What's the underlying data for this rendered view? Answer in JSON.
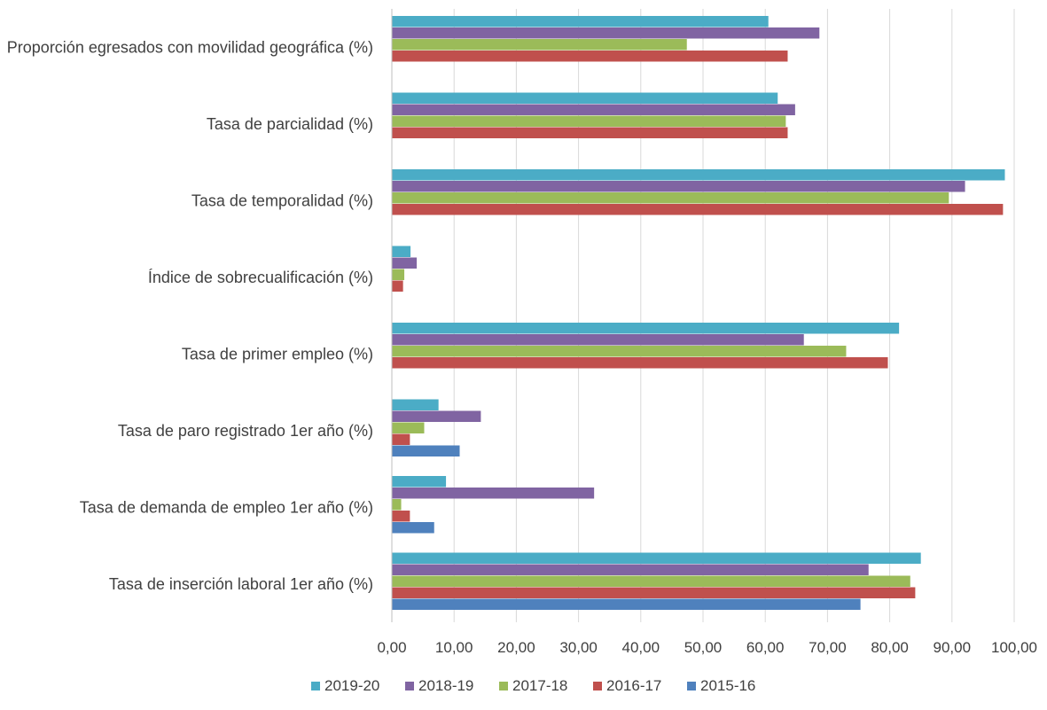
{
  "chart_data": {
    "type": "bar",
    "orientation": "horizontal",
    "title": "",
    "xlabel": "",
    "ylabel": "",
    "xlim": [
      0,
      100
    ],
    "x_tick_values": [
      0,
      10,
      20,
      30,
      40,
      50,
      60,
      70,
      80,
      90,
      100
    ],
    "x_tick_labels": [
      "0,00",
      "10,00",
      "20,00",
      "30,00",
      "40,00",
      "50,00",
      "60,00",
      "70,00",
      "80,00",
      "90,00",
      "100,00"
    ],
    "grid": true,
    "legend_position": "bottom",
    "categories": [
      "Proporción egresados con movilidad geográfica (%)",
      "Tasa de parcialidad (%)",
      "Tasa de temporalidad (%)",
      "Índice de sobrecualificación (%)",
      "Tasa de primer empleo (%)",
      "Tasa de paro registrado 1er año (%)",
      "Tasa de demanda de empleo 1er año (%)",
      "Tasa de inserción laboral 1er año (%)"
    ],
    "series": [
      {
        "name": "2019-20",
        "color": "#4BACC6",
        "values": [
          60.5,
          62.0,
          98.5,
          3.0,
          81.5,
          7.5,
          8.7,
          85.0
        ]
      },
      {
        "name": "2018-19",
        "color": "#8064A2",
        "values": [
          68.7,
          64.8,
          92.1,
          4.0,
          66.2,
          14.3,
          32.5,
          76.6
        ]
      },
      {
        "name": "2017-18",
        "color": "#9BBB59",
        "values": [
          47.4,
          63.3,
          89.5,
          2.0,
          73.0,
          5.2,
          1.5,
          83.3
        ]
      },
      {
        "name": "2016-17",
        "color": "#C0504D",
        "values": [
          63.6,
          63.6,
          98.2,
          1.8,
          79.7,
          2.9,
          2.9,
          84.1
        ]
      },
      {
        "name": "2015-16",
        "color": "#4F81BD",
        "values": [
          null,
          null,
          null,
          null,
          null,
          10.9,
          6.8,
          75.3
        ]
      }
    ]
  }
}
